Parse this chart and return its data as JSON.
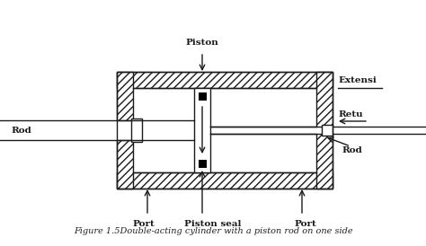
{
  "fig_width": 4.74,
  "fig_height": 2.74,
  "dpi": 100,
  "line_color": "#1a1a1a",
  "caption": "Figure 1.5Double-acting cylinder with a piston rod on one side",
  "labels": {
    "piston": "Piston",
    "piston_seal": "Piston seal",
    "port_left": "Port",
    "port_right": "Port",
    "rod_left": "Rod",
    "extension": "Extensi",
    "return": "Retu",
    "rod_right": "Rod"
  }
}
